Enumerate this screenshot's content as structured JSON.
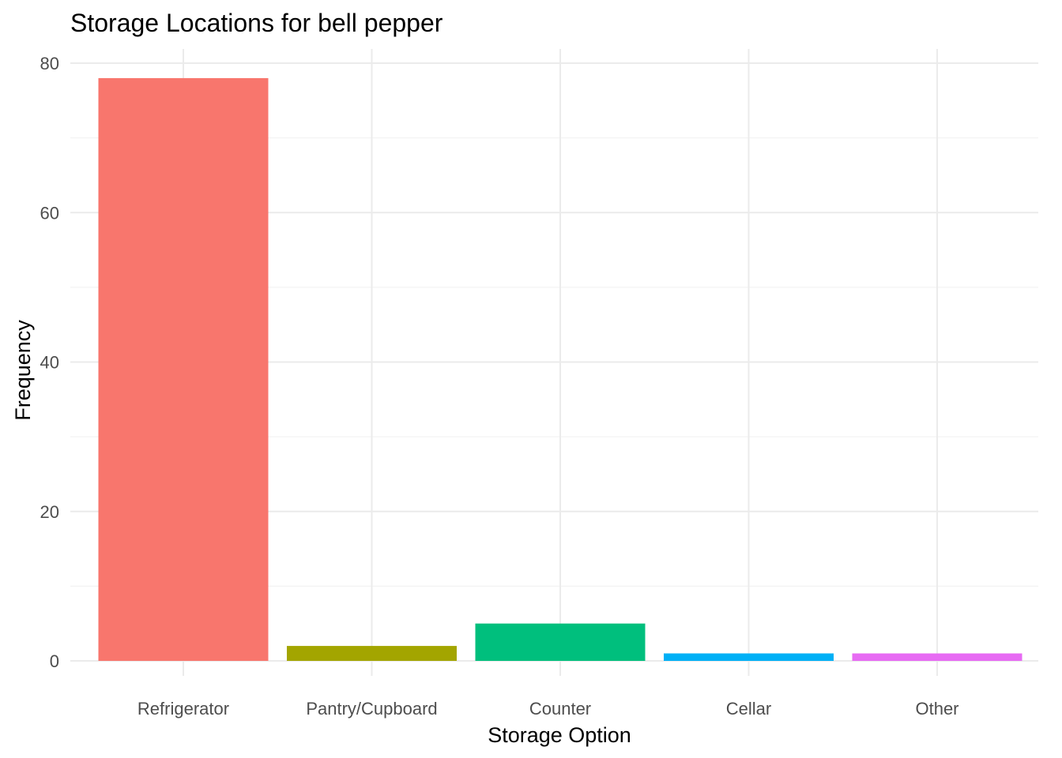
{
  "chart_data": {
    "type": "bar",
    "title": "Storage Locations for bell pepper",
    "xlabel": "Storage Option",
    "ylabel": "Frequency",
    "categories": [
      "Refrigerator",
      "Pantry/Cupboard",
      "Counter",
      "Cellar",
      "Other"
    ],
    "values": [
      78,
      2,
      5,
      1,
      1
    ],
    "colors": [
      "#F8766D",
      "#A3A500",
      "#00BF7D",
      "#00B0F6",
      "#E76BF3"
    ],
    "ylim": [
      0,
      80
    ],
    "yticks": [
      0,
      20,
      40,
      60,
      80
    ],
    "grid": true,
    "legend": "none"
  }
}
